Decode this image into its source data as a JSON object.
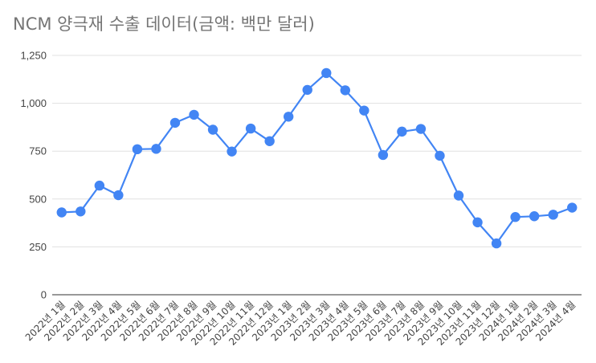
{
  "chart_data": {
    "type": "line",
    "title": "NCM 양극재 수출 데이터(금액: 백만 달러)",
    "xlabel": "",
    "ylabel": "",
    "ylim": [
      0,
      1250
    ],
    "yticks": [
      "0",
      "250",
      "500",
      "750",
      "1,000",
      "1,250"
    ],
    "grid": true,
    "legend": "none",
    "color": "#4285f4",
    "categories": [
      "2022년 1월",
      "2022년 2월",
      "2022년 3월",
      "2022년 4월",
      "2022년 5월",
      "2022년 6월",
      "2022년 7월",
      "2022년 8월",
      "2022년 9월",
      "2022년 10월",
      "2022년 11월",
      "2022년 12월",
      "2023년 1월",
      "2023년 2월",
      "2023년 3월",
      "2023년 4월",
      "2023년 5월",
      "2023년 6월",
      "2023년 7월",
      "2023년 8월",
      "2023년 9월",
      "2023년 10월",
      "2023년 11월",
      "2023년 12월",
      "2024년 1월",
      "2024년 2월",
      "2024년 3월",
      "2024년 4월"
    ],
    "values": [
      430,
      435,
      570,
      520,
      760,
      762,
      898,
      940,
      862,
      748,
      868,
      802,
      930,
      1070,
      1158,
      1068,
      962,
      730,
      852,
      866,
      726,
      518,
      378,
      268,
      406,
      410,
      418,
      455
    ]
  }
}
